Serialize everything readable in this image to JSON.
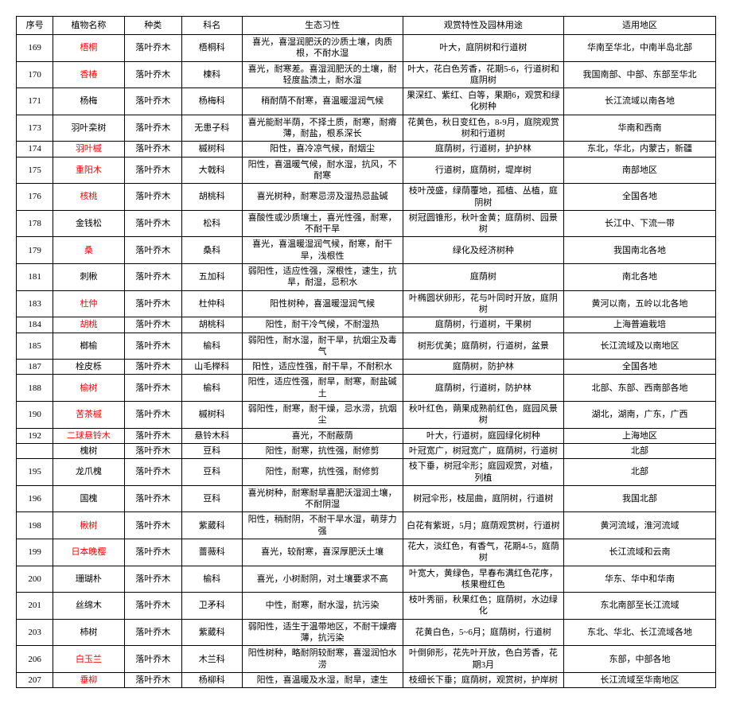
{
  "headers": {
    "seq": "序号",
    "name": "植物名称",
    "type": "种类",
    "family": "科名",
    "habit": "生态习性",
    "use": "观赏特性及园林用途",
    "region": "适用地区"
  },
  "rows": [
    {
      "seq": "169",
      "name": "梧桐",
      "name_red": true,
      "type": "落叶乔木",
      "family": "梧桐科",
      "habit": "喜光，喜湿润肥沃的沙质土壤，肉质根，不耐水湿",
      "use": "叶大，庭阴树和行道树",
      "region": "华南至华北，中南半岛北部"
    },
    {
      "seq": "170",
      "name": "香椿",
      "name_red": true,
      "type": "落叶乔木",
      "family": "楝科",
      "habit": "喜光，耐寒差。喜湿润肥沃的土壤，耐轻度盐渍土，耐水湿",
      "use": "叶大，花白色芳香，花期5-6，行道树和庭阴树",
      "region": "我国南部、中部、东部至华北"
    },
    {
      "seq": "171",
      "name": "杨梅",
      "type": "落叶乔木",
      "family": "杨梅科",
      "habit": "稍耐荫不耐寒，喜温暖湿润气候",
      "use": "果深红、紫红、白等，果期6，观赏和绿化树种",
      "region": "长江流域以南各地"
    },
    {
      "seq": "173",
      "name": "羽叶栾树",
      "type": "落叶乔木",
      "family": "无患子科",
      "habit": "喜光能耐半荫，不择土质，耐寒，耐瘠薄，耐盐，根系深长",
      "use": "花黄色，秋日变红色，8-9月，庭院观赏树和行道树",
      "region": "华南和西南"
    },
    {
      "seq": "174",
      "name": "羽叶槭",
      "name_red": true,
      "type": "落叶乔木",
      "family": "槭树科",
      "habit": "阳性，喜冷凉气候，耐烟尘",
      "use": "庭荫树，行道树，护护林",
      "region": "东北，华北，内蒙古，新疆"
    },
    {
      "seq": "175",
      "name": "重阳木",
      "name_red": true,
      "type": "落叶乔木",
      "family": "大戟科",
      "habit": "阳性，喜温暖气候，耐水湿，抗风，不耐寒",
      "use": "行道树，庭荫树，堤岸树",
      "region": "南部地区"
    },
    {
      "seq": "176",
      "name": "核桃",
      "name_red": true,
      "type": "落叶乔木",
      "family": "胡桃科",
      "habit": "喜光树种，耐寒忌涝及湿热忌盐碱",
      "use": "枝叶茂盛，绿荫覆地，孤植、丛植，庭阴树",
      "region": "全国各地"
    },
    {
      "seq": "178",
      "name": "金钱松",
      "type": "落叶乔木",
      "family": "松科",
      "habit": "喜酸性或沙质壤土，喜光性强，耐寒，不耐干旱",
      "use": "树冠圆锥形，秋叶金黄；庭荫树、园景树",
      "region": "长江中、下流一带"
    },
    {
      "seq": "179",
      "name": "桑",
      "name_red": true,
      "type": "落叶乔木",
      "family": "桑科",
      "habit": "喜光，喜温暖湿润气候，耐寒，耐干旱，浅根性",
      "use": "绿化及经济树种",
      "region": "我国南北各地"
    },
    {
      "seq": "181",
      "name": "刺楸",
      "type": "落叶乔木",
      "family": "五加科",
      "habit": "弱阳性，适应性强，深根性，速生，抗旱，耐湿，忌积水",
      "use": "庭荫树",
      "region": "南北各地"
    },
    {
      "seq": "183",
      "name": "杜仲",
      "name_red": true,
      "type": "落叶乔木",
      "family": "杜仲科",
      "habit": "阳性树种，喜温暖湿润气候",
      "use": "叶椭圆状卵形，花与叶同时开放，庭阴树",
      "region": "黄河以南，五岭以北各地"
    },
    {
      "seq": "184",
      "name": "胡桃",
      "name_red": true,
      "type": "落叶乔木",
      "family": "胡桃科",
      "habit": "阳性，耐干冷气候，不耐湿热",
      "use": "庭荫树，行道树，干果树",
      "region": "上海普遍栽培"
    },
    {
      "seq": "185",
      "name": "榔榆",
      "type": "落叶乔木",
      "family": "榆科",
      "habit": "弱阳性，耐水湿，耐干旱，抗烟尘及毒气",
      "use": "树形优美；庭荫树，行道树，盆景",
      "region": "长江流域及以南地区"
    },
    {
      "seq": "187",
      "name": "栓皮栎",
      "type": "落叶乔木",
      "family": "山毛榉科",
      "habit": "阳性，适应性强，耐干旱，不耐积水",
      "use": "庭荫树，防护林",
      "region": "全国各地"
    },
    {
      "seq": "188",
      "name": "榆树",
      "name_red": true,
      "type": "落叶乔木",
      "family": "榆科",
      "habit": "阳性，适应性强，耐旱，耐寒，耐盐碱土",
      "use": "庭荫树，行道树，防护林",
      "region": "北部、东部、西南部各地"
    },
    {
      "seq": "190",
      "name": "苦茶槭",
      "name_red": true,
      "type": "落叶乔木",
      "family": "槭树科",
      "habit": "弱阳性，耐寒，耐干燥，忌水涝，抗烟尘",
      "use": "秋叶红色，蒴果成熟前红色，庭园风景树",
      "region": "湖北，湖南，广东，广西"
    },
    {
      "seq": "192",
      "name": "二球悬铃木",
      "name_red": true,
      "type": "落叶乔木",
      "family": "悬铃木科",
      "habit": "喜光，不耐蔽荫",
      "use": "叶大，行道树，庭园绿化树种",
      "region": "上海地区"
    },
    {
      "seq": "",
      "name": "槐树",
      "type": "落叶乔木",
      "family": "豆科",
      "habit": "阳性，耐寒，抗性强，耐修剪",
      "use": "叶冠宽广，树冠宽广，庭荫树，行道树",
      "region": "北部"
    },
    {
      "seq": "195",
      "name": "龙爪槐",
      "type": "落叶乔木",
      "family": "豆科",
      "habit": "阳性，耐寒，抗性强，耐修剪",
      "use": "枝下垂，树冠伞形；庭园观赏，对植，列植",
      "region": "北部"
    },
    {
      "seq": "196",
      "name": "国槐",
      "type": "落叶乔木",
      "family": "豆科",
      "habit": "喜光树种，耐寒耐旱喜肥沃湿润土壤，不耐阴湿",
      "use": "树冠伞形，枝屈曲，庭阴树，行道树",
      "region": "我国北部"
    },
    {
      "seq": "198",
      "name": "楸树",
      "name_red": true,
      "type": "落叶乔木",
      "family": "紫葳科",
      "habit": "阳性，稍耐阴，不耐干旱水湿，萌芽力强",
      "use": "白花有紫斑，5月；庭荫观赏树，行道树",
      "region": "黄河流域，淮河流域"
    },
    {
      "seq": "199",
      "name": "日本晚樱",
      "name_red": true,
      "type": "落叶乔木",
      "family": "蔷薇科",
      "habit": "喜光，较耐寒，喜深厚肥沃土壤",
      "use": "花大，淡红色，有香气，花期4-5，庭荫树",
      "region": "长江流域和云南"
    },
    {
      "seq": "200",
      "name": "珊瑚朴",
      "type": "落叶乔木",
      "family": "榆科",
      "habit": "喜光，小树耐阴，对土壤要求不高",
      "use": "叶宽大，黄绿色，早春布满红色花序，核果橙红色",
      "region": "华东、华中和华南"
    },
    {
      "seq": "201",
      "name": "丝绵木",
      "type": "落叶乔木",
      "family": "卫矛科",
      "habit": "中性，耐寒，耐水湿，抗污染",
      "use": "枝叶秀丽，秋果红色；庭荫树，水边绿化",
      "region": "东北南部至长江流域"
    },
    {
      "seq": "203",
      "name": "柿树",
      "type": "落叶乔木",
      "family": "紫葳科",
      "habit": "弱阳性，适生于温带地区，不耐干燥瘠薄，抗污染",
      "use": "花黄白色，5~6月；庭荫树，行道树",
      "region": "东北、华北、长江流域各地"
    },
    {
      "seq": "206",
      "name": "白玉兰",
      "name_red": true,
      "type": "落叶乔木",
      "family": "木兰科",
      "habit": "阳性树种，略耐阴较耐寒，喜湿润怕水涝",
      "use": "叶倒卵形，花先叶开放，色白芳香，花期3月",
      "region": "东部，中部各地"
    },
    {
      "seq": "207",
      "name": "垂柳",
      "name_red": true,
      "type": "落叶乔木",
      "family": "杨柳科",
      "habit": "阳性，喜温暖及水湿，耐旱，速生",
      "use": "枝细长下垂；庭荫树，观赏树，护岸树",
      "region": "长江流域至华南地区"
    }
  ]
}
